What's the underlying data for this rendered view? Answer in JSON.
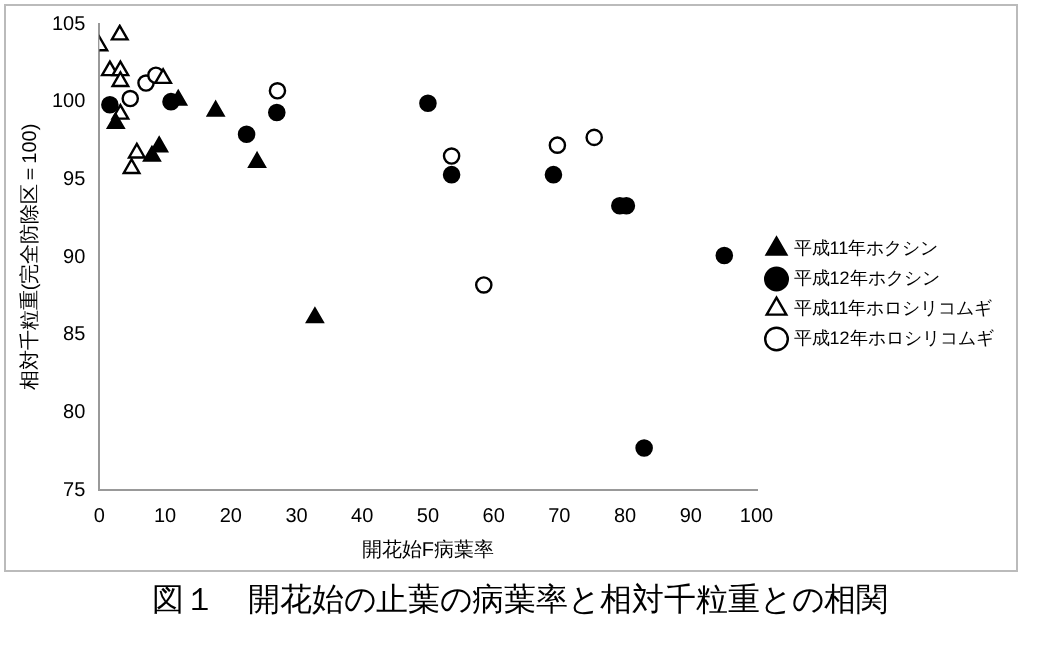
{
  "chart_data": {
    "type": "scatter",
    "xlabel": "開花始F病葉率",
    "ylabel": "相対千粒重(完全防除区＝100)",
    "xlim": [
      0,
      100
    ],
    "xticks": [
      0,
      10,
      20,
      30,
      40,
      50,
      60,
      70,
      80,
      90,
      100
    ],
    "ylim": [
      75,
      105
    ],
    "yticks": [
      75,
      80,
      85,
      90,
      95,
      100,
      105
    ],
    "grid": false,
    "legend": "right",
    "annotations": [
      "図１　開花始の止葉の病葉率と相対千粒重との相関"
    ],
    "series": [
      {
        "name": "平成11年ホクシン",
        "color": "#000000",
        "marker": "triangle",
        "x": [
          2.5,
          9.1,
          8.0,
          12.0,
          17.7,
          24.0,
          32.8
        ],
        "values": [
          98.6,
          97.1,
          96.5,
          100.1,
          99.4,
          96.1,
          86.1
        ]
      },
      {
        "name": "平成12年ホクシン",
        "color": "#000000",
        "marker": "circle",
        "x": [
          1.6,
          10.9,
          22.4,
          27.0,
          50.0,
          53.6,
          69.1,
          79.2,
          80.2,
          95.1,
          82.9
        ],
        "values": [
          99.8,
          100.0,
          97.9,
          99.3,
          99.9,
          95.3,
          95.3,
          93.3,
          93.3,
          90.1,
          77.7
        ]
      },
      {
        "name": "平成11年ホロシリコムギ",
        "color": "#ffffff",
        "marker": "triangle",
        "x": [
          0,
          3.1,
          1.6,
          3.2,
          3.2,
          9.7,
          4.9,
          5.7,
          3.2
        ],
        "values": [
          103.6,
          104.3,
          102.0,
          102.0,
          101.3,
          101.5,
          95.7,
          96.7,
          99.2
        ]
      },
      {
        "name": "平成12年ホロシリコムギ",
        "color": "#ffffff",
        "marker": "circle",
        "x": [
          4.7,
          7.1,
          8.6,
          27.1,
          53.6,
          69.7,
          75.3,
          58.5
        ],
        "values": [
          100.2,
          101.2,
          101.7,
          100.7,
          96.5,
          97.2,
          97.7,
          88.2
        ]
      }
    ]
  }
}
